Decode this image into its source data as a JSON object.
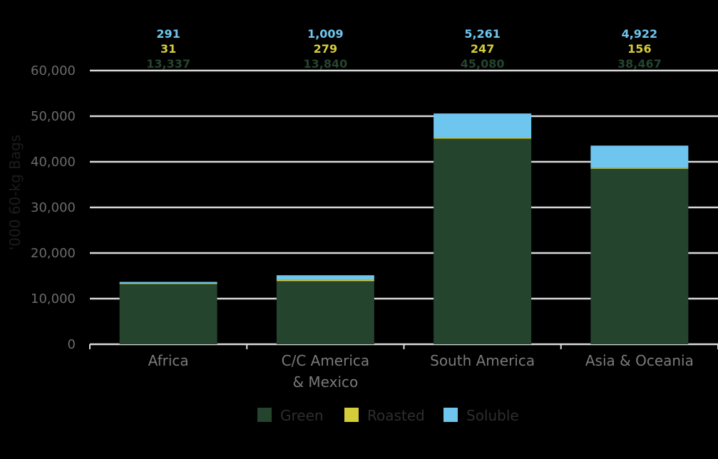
{
  "chart_data": {
    "type": "bar",
    "stacked": true,
    "categories": [
      [
        "Africa"
      ],
      [
        "C/C America",
        "& Mexico"
      ],
      [
        "South America"
      ],
      [
        "Asia & Oceania"
      ]
    ],
    "series": [
      {
        "name": "Green",
        "color": "#24442e",
        "values": [
          13337,
          13840,
          45080,
          38467
        ],
        "labels": [
          "13,337",
          "13,840",
          "45,080",
          "38,467"
        ]
      },
      {
        "name": "Roasted",
        "color": "#d4cc3a",
        "values": [
          31,
          279,
          247,
          156
        ],
        "labels": [
          "31",
          "279",
          "247",
          "156"
        ]
      },
      {
        "name": "Soluble",
        "color": "#6ec6ee",
        "values": [
          291,
          1009,
          5261,
          4922
        ],
        "labels": [
          "291",
          "1,009",
          "5,261",
          "4,922"
        ]
      }
    ],
    "title": "",
    "xlabel": "",
    "ylabel": "'000 60-kg Bags",
    "ylim": [
      0,
      60000
    ],
    "yticks": [
      "0",
      "10,000",
      "20,000",
      "30,000",
      "40,000",
      "50,000",
      "60,000"
    ],
    "grid": true,
    "legend": "bottom"
  }
}
